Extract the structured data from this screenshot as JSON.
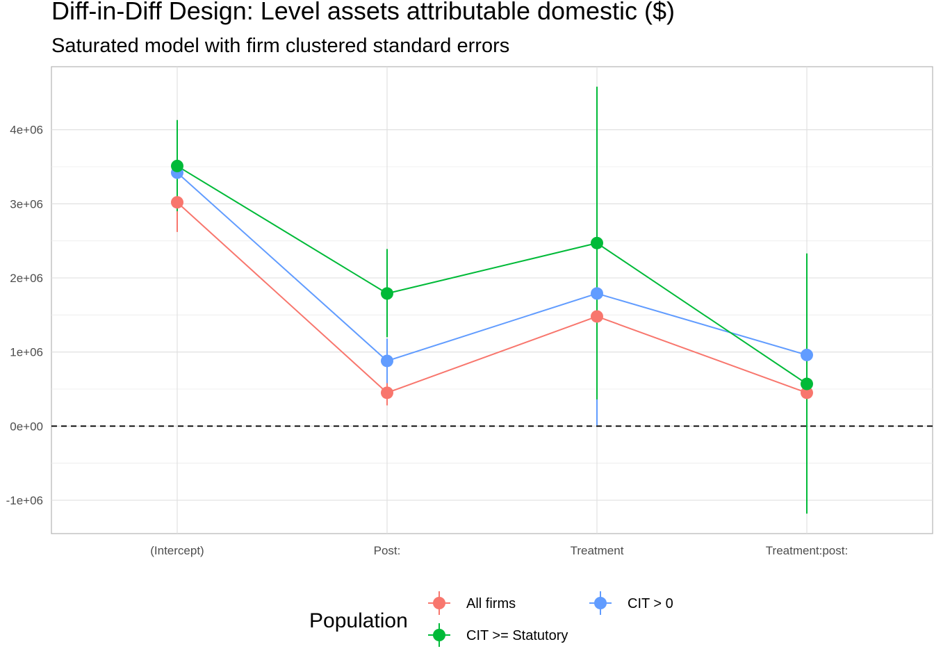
{
  "chart_data": {
    "type": "line",
    "title": "Diff-in-Diff Design: Level assets attributable domestic  ($)",
    "subtitle": "Saturated model with firm clustered standard errors",
    "categories": [
      "(Intercept)",
      "Post:",
      "Treatment",
      "Treatment:post:"
    ],
    "y_ticks": [
      "-1e+06",
      "0e+00",
      "1e+06",
      "2e+06",
      "3e+06",
      "4e+06"
    ],
    "y_tick_values": [
      -1000000,
      0,
      1000000,
      2000000,
      3000000,
      4000000
    ],
    "ylim": [
      -1450000,
      4850000
    ],
    "reference_line": 0,
    "grid": true,
    "legend": {
      "title": "Population",
      "position": "bottom",
      "entries": [
        "All firms",
        "CIT > 0",
        "CIT >= Statutory"
      ]
    },
    "series": [
      {
        "name": "All firms",
        "color": "#F8766D",
        "values": [
          3020000,
          450000,
          1480000,
          450000
        ],
        "lower": [
          2620000,
          280000,
          1340000,
          420000
        ],
        "upper": [
          3420000,
          620000,
          1620000,
          480000
        ]
      },
      {
        "name": "CIT > 0",
        "color": "#619CFF",
        "values": [
          3420000,
          880000,
          1790000,
          960000
        ],
        "lower": [
          3000000,
          580000,
          10000,
          -270000
        ],
        "upper": [
          3960000,
          1180000,
          3570000,
          2200000
        ]
      },
      {
        "name": "CIT >= Statutory",
        "color": "#00BA38",
        "values": [
          3510000,
          1790000,
          2470000,
          570000
        ],
        "lower": [
          2900000,
          1200000,
          360000,
          -1180000
        ],
        "upper": [
          4130000,
          2390000,
          4580000,
          2330000
        ]
      }
    ]
  }
}
